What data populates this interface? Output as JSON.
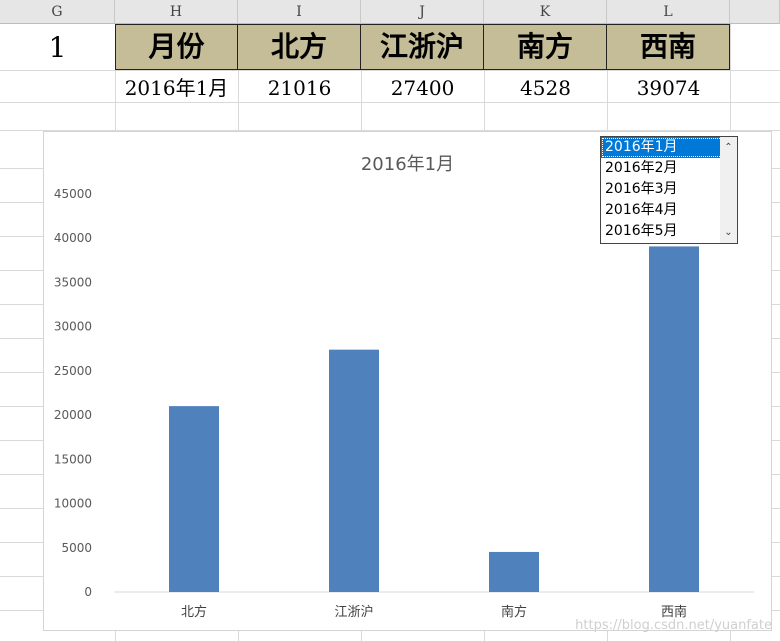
{
  "sheet": {
    "columns": [
      "G",
      "H",
      "I",
      "J",
      "K",
      "L"
    ],
    "row_number": "1",
    "headers": [
      "月份",
      "北方",
      "江浙沪",
      "南方",
      "西南"
    ],
    "values": [
      "2016年1月",
      "21016",
      "27400",
      "4528",
      "39074"
    ]
  },
  "listbox": {
    "items": [
      "2016年1月",
      "2016年2月",
      "2016年3月",
      "2016年4月",
      "2016年5月"
    ],
    "selected": "2016年1月"
  },
  "chart_data": {
    "type": "bar",
    "title": "2016年1月",
    "categories": [
      "北方",
      "江浙沪",
      "南方",
      "西南"
    ],
    "values": [
      21016,
      27400,
      4528,
      39074
    ],
    "ylim": [
      0,
      45000
    ],
    "yticks": [
      0,
      5000,
      10000,
      15000,
      20000,
      25000,
      30000,
      35000,
      40000,
      45000
    ],
    "bar_color": "#4f81bd",
    "grid": false
  },
  "watermark": "https://blog.csdn.net/yuanfate"
}
